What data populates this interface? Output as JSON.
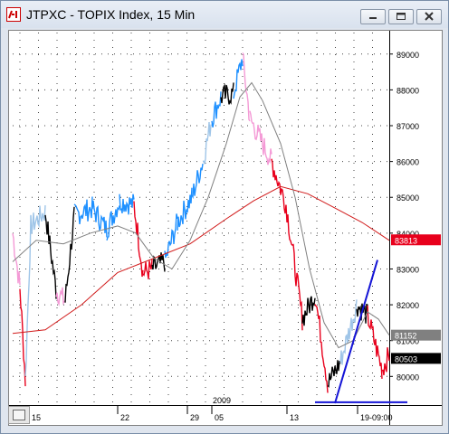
{
  "window": {
    "title": "JTPXC - TOPIX Index, 15 Min",
    "controls": {
      "minimize": "minimize",
      "maximize": "maximize",
      "close": "close"
    }
  },
  "chart_data": {
    "type": "line",
    "title": "",
    "y_ticks": [
      80000,
      81000,
      82000,
      83000,
      84000,
      85000,
      86000,
      87000,
      88000,
      89000
    ],
    "price_flags": [
      {
        "label": "83813",
        "value": 83813,
        "color": "#e8001c"
      },
      {
        "label": "81152",
        "value": 81152,
        "color": "#808080"
      },
      {
        "label": "80503",
        "value": 80503,
        "color": "#000000"
      }
    ],
    "x_ticks": [
      "15",
      "22",
      "29",
      "05",
      "13",
      "19-09:00"
    ],
    "x_center_label": "2009",
    "colors": {
      "price_up": "#1e90ff",
      "price_light_up": "#9fc5e8",
      "price_down": "#e8001c",
      "price_light_down": "#f49ad6",
      "price_neutral": "#000000",
      "ma_fast": "#808080",
      "ma_slow": "#d11a1a",
      "trend_line": "#1414d6"
    },
    "ylim": [
      79200,
      89600
    ]
  }
}
